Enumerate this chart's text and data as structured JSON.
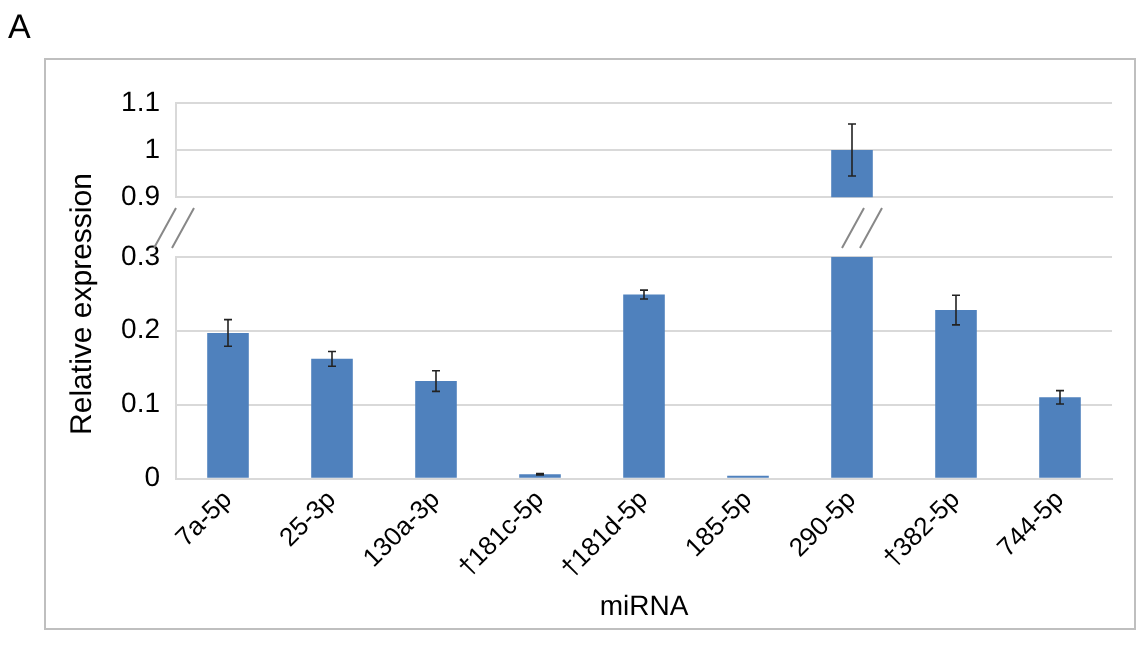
{
  "chart_data": [
    {
      "type": "bar",
      "annotations": [
        "A"
      ],
      "categories": [
        null,
        null,
        null,
        null,
        null,
        null,
        null,
        null,
        null
      ],
      "values": [
        null,
        null,
        null,
        null,
        null,
        null,
        1.0,
        null,
        null
      ],
      "errors": [
        null,
        null,
        null,
        null,
        null,
        null,
        0.055,
        null,
        null
      ],
      "color": "#4f81bd",
      "ylim": [
        0.9,
        1.1
      ],
      "yticks": [
        0.9,
        1,
        1.1
      ],
      "grid": "y",
      "tick_labels": "y"
    },
    {
      "type": "bar",
      "xlabel": "miRNA",
      "ylabel": "Relative expression",
      "categories": [
        "7a-5p",
        "25-3p",
        "130a-3p",
        "†181c-5p",
        "†181d-5p",
        "185-5p",
        "290-5p",
        "†382-5p",
        "744-5p"
      ],
      "values": [
        0.197,
        0.162,
        0.132,
        0.006,
        0.249,
        0.004,
        0.3,
        0.228,
        0.11
      ],
      "errors": [
        0.018,
        0.01,
        0.014,
        0.001,
        0.006,
        null,
        null,
        0.02,
        0.009
      ],
      "color": "#4f81bd",
      "ylim": [
        0,
        0.3
      ],
      "yticks": [
        0,
        0.1,
        0.2,
        0.3
      ],
      "grid": "y"
    }
  ]
}
